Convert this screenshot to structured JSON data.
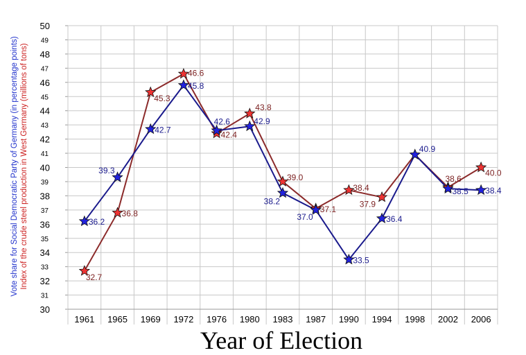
{
  "chart_data": {
    "type": "line",
    "xlabel": "Year of Election",
    "ylabel_blue": "Vote share for Social Democratic Party of Germany (in percentage points)",
    "ylabel_red": "Index of the crude steel production in West Germany (millions of tons)",
    "ylim": [
      30,
      50
    ],
    "y_major_ticks": [
      30,
      32,
      34,
      36,
      38,
      40,
      42,
      44,
      46,
      48,
      50
    ],
    "y_minor_ticks": [
      31,
      33,
      35,
      37,
      39,
      41,
      43,
      45,
      47,
      49
    ],
    "categories": [
      "1961",
      "1965",
      "1969",
      "1972",
      "1976",
      "1980",
      "1983",
      "1987",
      "1990",
      "1994",
      "1998",
      "2002",
      "2006"
    ],
    "grid": true,
    "series": [
      {
        "color": "#1a1a8c",
        "marker_color": "#2222dd",
        "values": [
          36.2,
          39.3,
          42.7,
          45.8,
          42.6,
          42.9,
          38.2,
          37.0,
          33.5,
          36.4,
          40.9,
          38.5,
          38.4
        ],
        "labels": [
          "36.2",
          "39.3",
          "42.7",
          "45.8",
          "42.6",
          "42.9",
          "38.2",
          "37.0",
          "33.5",
          "36.4",
          "40.9",
          "38.5",
          "38.4"
        ],
        "label_color": "#1a1a8c"
      },
      {
        "color": "#8b2a2a",
        "marker_color": "#ee3333",
        "values": [
          32.7,
          36.8,
          45.3,
          46.6,
          42.4,
          43.8,
          39.0,
          37.1,
          38.4,
          37.9,
          40.9,
          38.6,
          40.0
        ],
        "labels": [
          "32.7",
          "36.8",
          "45.3",
          "46.6",
          "42.4",
          "43.8",
          "39.0",
          "37.1",
          "38.4",
          "37.9",
          "",
          "38.6",
          "40.0"
        ],
        "label_color": "#7a1f1f"
      }
    ]
  }
}
